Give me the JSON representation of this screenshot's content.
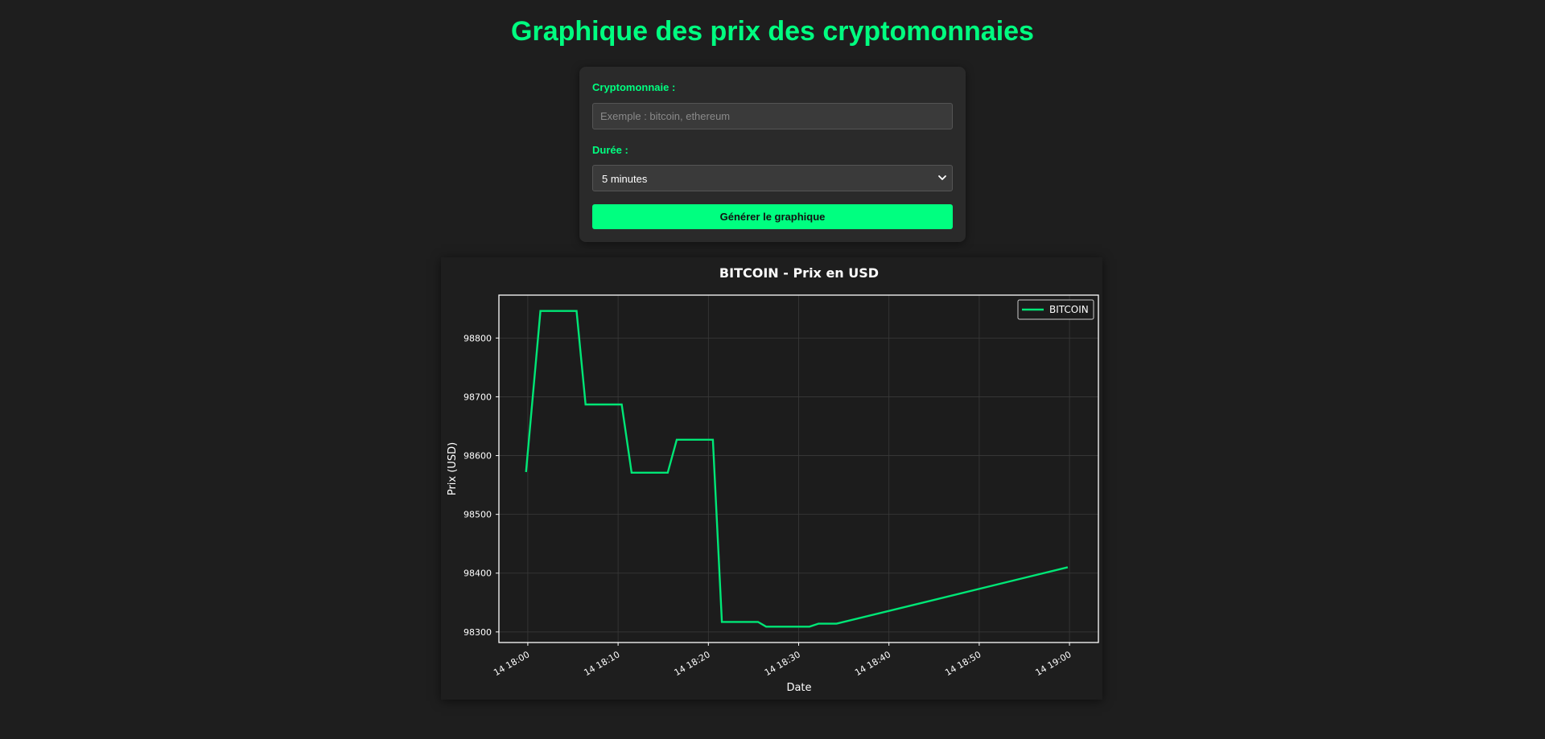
{
  "page": {
    "title": "Graphique des prix des cryptomonnaies"
  },
  "form": {
    "crypto_label": "Cryptomonnaie :",
    "crypto_placeholder": "Exemple : bitcoin, ethereum",
    "crypto_value": "",
    "duration_label": "Durée :",
    "duration_selected": "5 minutes",
    "generate_label": "Générer le graphique"
  },
  "colors": {
    "accent": "#00ff80",
    "line": "#00e676",
    "background": "#1e1e1e",
    "plot_background": "#1c1c1c"
  },
  "chart_data": {
    "type": "line",
    "title": "BITCOIN - Prix en USD",
    "xlabel": "Date",
    "ylabel": "Prix (USD)",
    "x_tick_labels": [
      "14 18:00",
      "14 18:10",
      "14 18:20",
      "14 18:30",
      "14 18:40",
      "14 18:50",
      "14 19:00"
    ],
    "x_tick_minutes": [
      0,
      10,
      20,
      30,
      40,
      50,
      60
    ],
    "y_ticks": [
      98300,
      98400,
      98500,
      98600,
      98700,
      98800
    ],
    "xlim_minutes": [
      -3.2,
      63.2
    ],
    "ylim": [
      98282,
      98873
    ],
    "grid": true,
    "legend": "top-right",
    "series": [
      {
        "name": "BITCOIN",
        "points": [
          [
            -0.2,
            98572
          ],
          [
            1.4,
            98846
          ],
          [
            5.4,
            98846
          ],
          [
            6.4,
            98687
          ],
          [
            10.4,
            98687
          ],
          [
            11.5,
            98571
          ],
          [
            15.5,
            98571
          ],
          [
            16.5,
            98627
          ],
          [
            20.5,
            98627
          ],
          [
            21.5,
            98317
          ],
          [
            25.5,
            98317
          ],
          [
            26.4,
            98309
          ],
          [
            31.2,
            98309
          ],
          [
            32.2,
            98314
          ],
          [
            34.2,
            98314
          ],
          [
            59.8,
            98410
          ]
        ]
      }
    ]
  }
}
